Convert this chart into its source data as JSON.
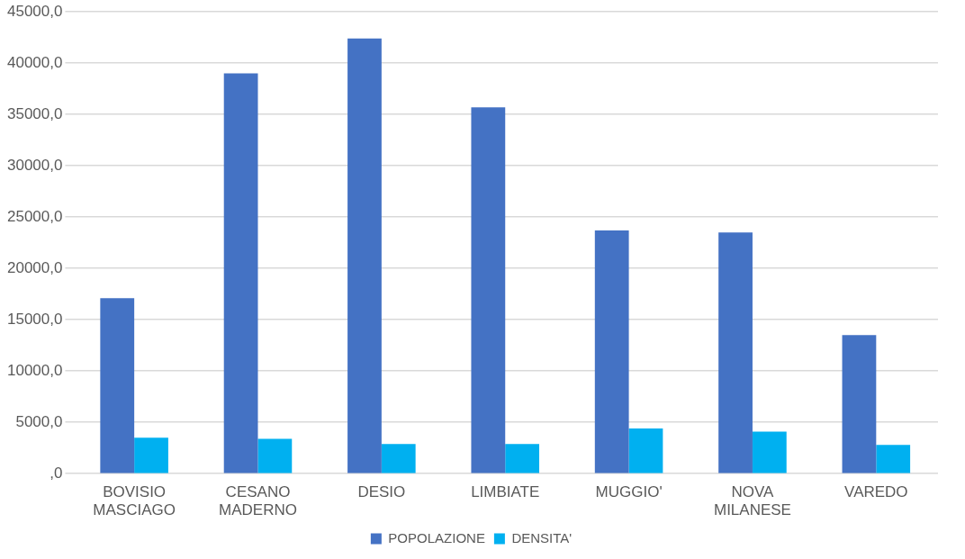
{
  "chart_data": {
    "type": "bar",
    "categories": [
      "BOVISIO MASCIAGO",
      "CESANO MADERNO",
      "DESIO",
      "LIMBIATE",
      "MUGGIO'",
      "NOVA MILANESE",
      "VAREDO"
    ],
    "series": [
      {
        "name": "POPOLAZIONE",
        "color": "#4472c4",
        "values": [
          17100,
          39000,
          42400,
          35700,
          23700,
          23500,
          13500
        ]
      },
      {
        "name": "DENSITA'",
        "color": "#00b0f0",
        "values": [
          3500,
          3400,
          2900,
          2900,
          4400,
          4100,
          2800
        ]
      }
    ],
    "ylim": [
      0,
      45000
    ],
    "yticks": [
      {
        "value": 0,
        "label": ",0"
      },
      {
        "value": 5000,
        "label": "5000,0"
      },
      {
        "value": 10000,
        "label": "10000,0"
      },
      {
        "value": 15000,
        "label": "15000,0"
      },
      {
        "value": 20000,
        "label": "20000,0"
      },
      {
        "value": 25000,
        "label": "25000,0"
      },
      {
        "value": 30000,
        "label": "30000,0"
      },
      {
        "value": 35000,
        "label": "35000,0"
      },
      {
        "value": 40000,
        "label": "40000,0"
      },
      {
        "value": 45000,
        "label": "45000,0"
      }
    ],
    "grid": "y",
    "legend": "bottom"
  }
}
